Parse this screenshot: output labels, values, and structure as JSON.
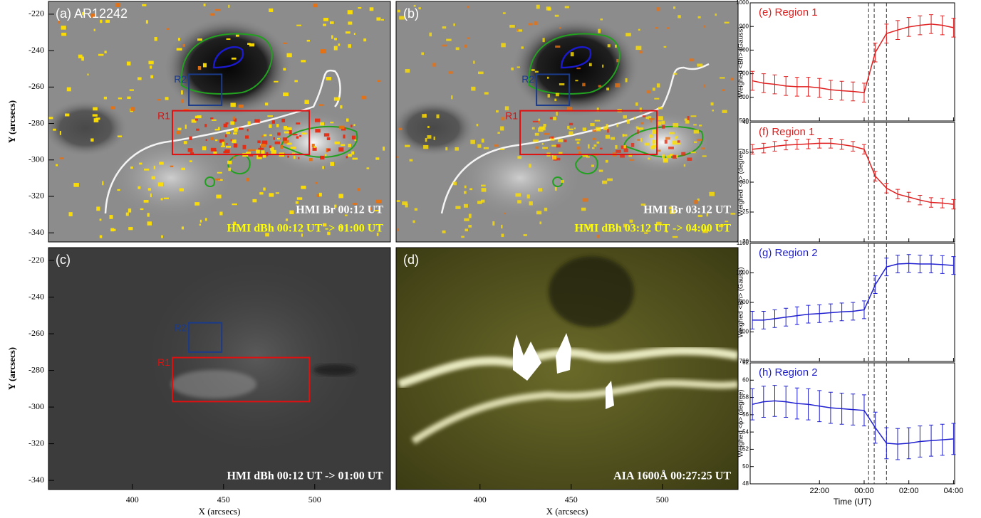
{
  "chart_data": [
    {
      "type": "image",
      "label": "(a) AR12242",
      "ylabel": "Y (arcsecs)",
      "xlim": [
        354,
        541.5
      ],
      "ylim": [
        -345,
        -213
      ],
      "yticks": [
        -220,
        -240,
        -260,
        -280,
        -300,
        -320,
        -340
      ],
      "regions": [
        {
          "label": "R1",
          "color": "#e01010",
          "x": [
            422,
            497
          ],
          "y": [
            -297,
            -273
          ]
        },
        {
          "label": "R2",
          "color": "#1a3a8a",
          "x": [
            431,
            449
          ],
          "y": [
            -270,
            -253
          ]
        }
      ],
      "annotations": [
        {
          "text": "HMI Br 00:12 UT",
          "color": "#ffffff"
        },
        {
          "text": "HMI dBh 00:12 UT -> 01:00 UT",
          "color": "#ffff00"
        }
      ]
    },
    {
      "type": "image",
      "label": "(b)",
      "xlim": [
        354,
        541.5
      ],
      "ylim": [
        -345,
        -213
      ],
      "regions": [
        {
          "label": "R1",
          "color": "#e01010",
          "x": [
            422,
            497
          ],
          "y": [
            -297,
            -273
          ]
        },
        {
          "label": "R2",
          "color": "#1a3a8a",
          "x": [
            431,
            449
          ],
          "y": [
            -270,
            -253
          ]
        }
      ],
      "annotations": [
        {
          "text": "HMI Br 03:12 UT",
          "color": "#ffffff"
        },
        {
          "text": "HMI dBh 03:12 UT -> 04:00 UT",
          "color": "#ffff00"
        }
      ]
    },
    {
      "type": "image",
      "label": "(c)",
      "ylabel": "Y (arcsecs)",
      "xlabel": "X (arcsecs)",
      "xlim": [
        354,
        541.5
      ],
      "ylim": [
        -345,
        -213
      ],
      "yticks": [
        -220,
        -240,
        -260,
        -280,
        -300,
        -320,
        -340
      ],
      "xticks": [
        400,
        450,
        500
      ],
      "regions": [
        {
          "label": "R1",
          "color": "#e01010",
          "x": [
            422,
            497
          ],
          "y": [
            -297,
            -273
          ]
        },
        {
          "label": "R2",
          "color": "#1a3a8a",
          "x": [
            431,
            449
          ],
          "y": [
            -270,
            -254
          ]
        }
      ],
      "annotations": [
        {
          "text": "HMI dBh 00:12 UT -> 01:00 UT",
          "color": "#ffffff"
        }
      ]
    },
    {
      "type": "image",
      "label": "(d)",
      "xlabel": "X (arcsecs)",
      "xlim": [
        354,
        541.5
      ],
      "ylim": [
        -345,
        -213
      ],
      "xticks": [
        400,
        450,
        500
      ],
      "annotations": [
        {
          "text": "AIA 1600Å 00:27:25 UT",
          "color": "#ffffff"
        }
      ]
    },
    {
      "type": "line",
      "title": "(e) Region 1",
      "ylabel": "Weighed <Bh> (Gauss)",
      "x": [
        -5,
        -4.5,
        -4,
        -3.5,
        -3,
        -2.5,
        -2,
        -1.5,
        -1,
        -0.5,
        0,
        0.5,
        1,
        1.5,
        2,
        2.5,
        3,
        3.5,
        4
      ],
      "series": [
        {
          "color": "#e02020",
          "values": [
            670,
            660,
            655,
            648,
            645,
            645,
            640,
            632,
            628,
            625,
            620,
            790,
            870,
            885,
            898,
            905,
            910,
            905,
            895
          ],
          "errors": [
            40,
            40,
            40,
            40,
            40,
            40,
            40,
            40,
            40,
            40,
            40,
            40,
            40,
            40,
            40,
            40,
            40,
            40,
            40
          ]
        }
      ],
      "xlim": [
        -5.1,
        4.05
      ],
      "ylim": [
        500,
        1000
      ],
      "yticks": [
        500,
        600,
        700,
        800,
        900,
        1000
      ],
      "vlines": [
        0.2,
        0.45,
        1
      ]
    },
    {
      "type": "line",
      "title": "(f) Region 1",
      "ylabel": "Weighed <ϕ> (degree)",
      "x": [
        -5,
        -4.5,
        -4,
        -3.5,
        -3,
        -2.5,
        -2,
        -1.5,
        -1,
        -0.5,
        0,
        0.5,
        1,
        1.5,
        2,
        2.5,
        3,
        3.5,
        4
      ],
      "series": [
        {
          "color": "#e02020",
          "values": [
            35.5,
            35.7,
            36,
            36.2,
            36.3,
            36.4,
            36.5,
            36.5,
            36.3,
            36,
            35.5,
            31,
            29,
            28,
            27.5,
            27,
            26.6,
            26.5,
            26.3
          ],
          "errors": [
            0.8,
            0.8,
            0.8,
            0.8,
            0.8,
            0.8,
            0.8,
            0.8,
            0.8,
            0.8,
            0.8,
            0.8,
            0.8,
            0.8,
            0.8,
            0.8,
            0.8,
            0.8,
            0.8
          ]
        }
      ],
      "xlim": [
        -5.1,
        4.05
      ],
      "ylim": [
        20,
        40
      ],
      "yticks": [
        20,
        25,
        30,
        35,
        40
      ],
      "vlines": [
        0.2,
        0.45,
        1
      ]
    },
    {
      "type": "line",
      "title": "(g) Region 2",
      "ylabel": "Weighed <Bh> (Gauss)",
      "x": [
        -5,
        -4.5,
        -4,
        -3.5,
        -3,
        -2.5,
        -2,
        -1.5,
        -1,
        -0.5,
        0,
        0.5,
        1,
        1.5,
        2,
        2.5,
        3,
        3.5,
        4
      ],
      "series": [
        {
          "color": "#2020d0",
          "values": [
            840,
            840,
            845,
            850,
            855,
            860,
            862,
            865,
            868,
            870,
            875,
            960,
            1020,
            1030,
            1032,
            1030,
            1030,
            1028,
            1025
          ],
          "errors": [
            30,
            30,
            30,
            30,
            30,
            30,
            30,
            30,
            30,
            30,
            30,
            30,
            30,
            30,
            30,
            30,
            30,
            30,
            30
          ]
        }
      ],
      "xlim": [
        -5.1,
        4.05
      ],
      "ylim": [
        700,
        1100
      ],
      "yticks": [
        700,
        800,
        900,
        1000,
        1100
      ],
      "vlines": [
        0.2,
        0.45,
        1
      ]
    },
    {
      "type": "line",
      "title": "(h) Region 2",
      "ylabel": "Weighed <ϕ> (degree)",
      "xlabel": "Time (UT)",
      "x": [
        -5,
        -4.5,
        -4,
        -3.5,
        -3,
        -2.5,
        -2,
        -1.5,
        -1,
        -0.5,
        0,
        0.5,
        1,
        1.5,
        2,
        2.5,
        3,
        3.5,
        4
      ],
      "series": [
        {
          "color": "#2020d0",
          "values": [
            57.2,
            57.5,
            57.6,
            57.5,
            57.3,
            57.2,
            57,
            56.8,
            56.7,
            56.6,
            56.5,
            54.5,
            52.7,
            52.6,
            52.7,
            52.9,
            53,
            53.1,
            53.2
          ],
          "errors": [
            1.8,
            1.8,
            1.8,
            1.8,
            1.8,
            1.8,
            1.8,
            1.8,
            1.8,
            1.8,
            1.8,
            1.8,
            1.8,
            1.8,
            1.8,
            1.8,
            1.8,
            1.8,
            1.8
          ]
        }
      ],
      "xlim": [
        -5.1,
        4.05
      ],
      "ylim": [
        48,
        62
      ],
      "yticks": [
        48,
        50,
        52,
        54,
        56,
        58,
        60,
        62
      ],
      "xticks": [
        {
          "value": -2,
          "label": "22:00"
        },
        {
          "value": 0,
          "label": "00:00"
        },
        {
          "value": 2,
          "label": "02:00"
        },
        {
          "value": 4,
          "label": "04:00"
        }
      ],
      "vlines": [
        0.2,
        0.45,
        1
      ]
    }
  ]
}
